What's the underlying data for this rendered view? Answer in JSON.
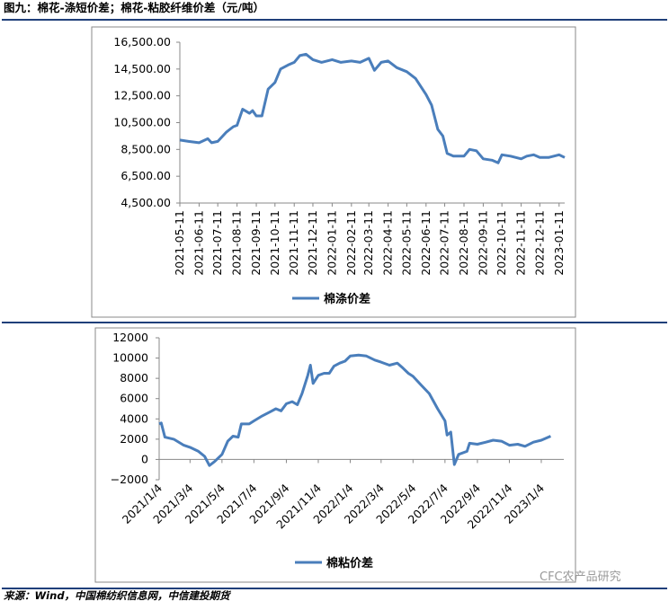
{
  "title": "图九：棉花-涤短价差；棉花-粘胶纤维价差（元/吨）",
  "source": "来源：Wind，中国棉纺织信息网，中信建投期货",
  "watermark": "CFC农产品研究",
  "chart_data": [
    {
      "type": "line",
      "x": [
        "2021-05-11",
        "2021-05-25",
        "2021-06-11",
        "2021-06-25",
        "2021-07-01",
        "2021-07-11",
        "2021-07-25",
        "2021-08-05",
        "2021-08-11",
        "2021-08-20",
        "2021-08-31",
        "2021-09-05",
        "2021-09-11",
        "2021-09-20",
        "2021-09-30",
        "2021-10-11",
        "2021-10-20",
        "2021-11-01",
        "2021-11-11",
        "2021-11-20",
        "2021-11-30",
        "2021-12-11",
        "2021-12-25",
        "2022-01-11",
        "2022-01-25",
        "2022-02-11",
        "2022-02-25",
        "2022-03-11",
        "2022-03-20",
        "2022-03-31",
        "2022-04-11",
        "2022-04-25",
        "2022-05-11",
        "2022-05-25",
        "2022-06-11",
        "2022-06-20",
        "2022-06-30",
        "2022-07-08",
        "2022-07-15",
        "2022-07-25",
        "2022-08-05",
        "2022-08-11",
        "2022-08-20",
        "2022-08-31",
        "2022-09-11",
        "2022-09-25",
        "2022-10-05",
        "2022-10-11",
        "2022-10-25",
        "2022-11-11",
        "2022-11-20",
        "2022-12-01",
        "2022-12-11",
        "2022-12-25",
        "2023-01-11",
        "2023-01-20"
      ],
      "series": [
        {
          "name": "棉涤价差",
          "color": "#4a7ebb",
          "values": [
            9200,
            9100,
            9000,
            9300,
            9000,
            9100,
            9800,
            10200,
            10300,
            11500,
            11200,
            11400,
            11000,
            11000,
            13000,
            13500,
            14500,
            14800,
            15000,
            15500,
            15600,
            15200,
            15000,
            15200,
            15000,
            15100,
            15000,
            15300,
            14400,
            15000,
            15100,
            14600,
            14300,
            13800,
            12600,
            11800,
            10000,
            9500,
            8200,
            8000,
            8000,
            8000,
            8500,
            8400,
            7800,
            7700,
            7500,
            8100,
            8000,
            7800,
            8000,
            8100,
            7900,
            7900,
            8100,
            7900
          ]
        }
      ],
      "xlim": [
        "2021-05-11",
        "2023-01-20"
      ],
      "xticks": [
        "2021-05-11",
        "2021-06-11",
        "2021-07-11",
        "2021-08-11",
        "2021-09-11",
        "2021-10-11",
        "2021-11-11",
        "2021-12-11",
        "2022-01-11",
        "2022-02-11",
        "2022-03-11",
        "2022-04-11",
        "2022-05-11",
        "2022-06-11",
        "2022-07-11",
        "2022-08-11",
        "2022-09-11",
        "2022-10-11",
        "2022-11-11",
        "2022-12-11",
        "2023-01-11"
      ],
      "ylim": [
        4500,
        16500
      ],
      "yticks": [
        {
          "value": 4500,
          "label": "4,500.00"
        },
        {
          "value": 6500,
          "label": "6,500.00"
        },
        {
          "value": 8500,
          "label": "8,500.00"
        },
        {
          "value": 10500,
          "label": "10,500.00"
        },
        {
          "value": 12500,
          "label": "12,500.00"
        },
        {
          "value": 14500,
          "label": "14,500.00"
        },
        {
          "value": 16500,
          "label": "16,500.00"
        }
      ]
    },
    {
      "type": "line",
      "x": [
        "2021-01-04",
        "2021-01-08",
        "2021-01-15",
        "2021-02-01",
        "2021-02-20",
        "2021-03-04",
        "2021-03-20",
        "2021-04-01",
        "2021-04-10",
        "2021-04-20",
        "2021-05-04",
        "2021-05-15",
        "2021-05-25",
        "2021-06-04",
        "2021-06-10",
        "2021-06-25",
        "2021-07-04",
        "2021-07-20",
        "2021-08-04",
        "2021-08-15",
        "2021-08-25",
        "2021-09-04",
        "2021-09-15",
        "2021-09-25",
        "2021-10-04",
        "2021-10-15",
        "2021-10-20",
        "2021-10-25",
        "2021-11-04",
        "2021-11-15",
        "2021-11-25",
        "2021-12-04",
        "2021-12-15",
        "2021-12-25",
        "2022-01-04",
        "2022-01-20",
        "2022-02-04",
        "2022-02-20",
        "2022-03-04",
        "2022-03-20",
        "2022-04-04",
        "2022-04-15",
        "2022-04-25",
        "2022-05-04",
        "2022-05-20",
        "2022-06-04",
        "2022-06-20",
        "2022-07-04",
        "2022-07-08",
        "2022-07-15",
        "2022-07-22",
        "2022-07-30",
        "2022-08-15",
        "2022-08-20",
        "2022-09-04",
        "2022-09-20",
        "2022-10-04",
        "2022-10-20",
        "2022-11-04",
        "2022-11-20",
        "2022-12-04",
        "2022-12-20",
        "2023-01-04",
        "2023-01-22"
      ],
      "series": [
        {
          "name": "棉粘价差",
          "color": "#4a7ebb",
          "values": [
            3500,
            3600,
            2200,
            2000,
            1400,
            1200,
            800,
            300,
            -600,
            -200,
            500,
            1800,
            2300,
            2200,
            3500,
            3500,
            3800,
            4300,
            4700,
            5000,
            4800,
            5500,
            5700,
            5400,
            6500,
            8300,
            9300,
            7500,
            8300,
            8500,
            8500,
            9200,
            9500,
            9700,
            10200,
            10300,
            10200,
            9800,
            9600,
            9300,
            9500,
            9000,
            8500,
            8200,
            7300,
            6500,
            5000,
            3800,
            2400,
            2700,
            -500,
            500,
            800,
            1600,
            1500,
            1700,
            1900,
            1800,
            1400,
            1500,
            1300,
            1700,
            1900,
            2300
          ]
        }
      ],
      "xlim": [
        "2021-01-04",
        "2023-02-16"
      ],
      "xticks": [
        {
          "value": "2021-01-04",
          "label": "2021/1/4"
        },
        {
          "value": "2021-03-04",
          "label": "2021/3/4"
        },
        {
          "value": "2021-05-04",
          "label": "2021/5/4"
        },
        {
          "value": "2021-07-04",
          "label": "2021/7/4"
        },
        {
          "value": "2021-09-04",
          "label": "2021/9/4"
        },
        {
          "value": "2021-11-04",
          "label": "2021/11/4"
        },
        {
          "value": "2022-01-04",
          "label": "2022/1/4"
        },
        {
          "value": "2022-03-04",
          "label": "2022/3/4"
        },
        {
          "value": "2022-05-04",
          "label": "2022/5/4"
        },
        {
          "value": "2022-07-04",
          "label": "2022/7/4"
        },
        {
          "value": "2022-09-04",
          "label": "2022/9/4"
        },
        {
          "value": "2022-11-04",
          "label": "2022/11/4"
        },
        {
          "value": "2023-01-04",
          "label": "2023/1/4"
        }
      ],
      "ylim": [
        -2000,
        12000
      ],
      "yticks": [
        {
          "value": -2000,
          "label": "−2000"
        },
        0,
        2000,
        4000,
        6000,
        8000,
        10000,
        12000
      ]
    }
  ]
}
